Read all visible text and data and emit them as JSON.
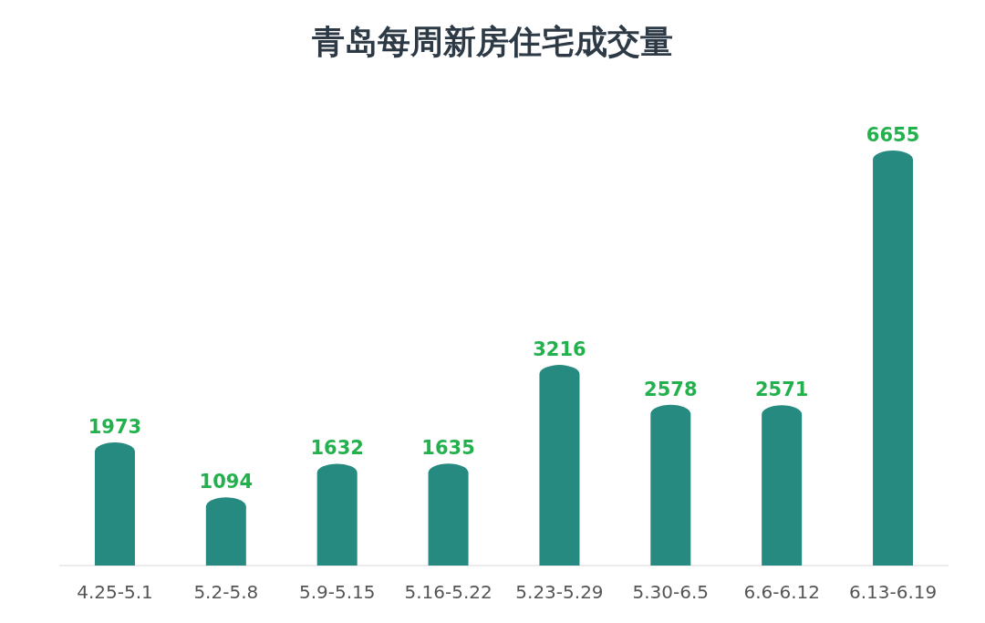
{
  "chart_data": {
    "type": "bar",
    "title": "青岛每周新房住宅成交量",
    "categories": [
      "4.25-5.1",
      "5.2-5.8",
      "5.9-5.15",
      "5.16-5.22",
      "5.23-5.29",
      "5.30-6.5",
      "6.6-6.12",
      "6.13-6.19"
    ],
    "values": [
      1973,
      1094,
      1632,
      1635,
      3216,
      2578,
      2571,
      6655
    ],
    "color": "#268a80",
    "data_labels": true
  }
}
